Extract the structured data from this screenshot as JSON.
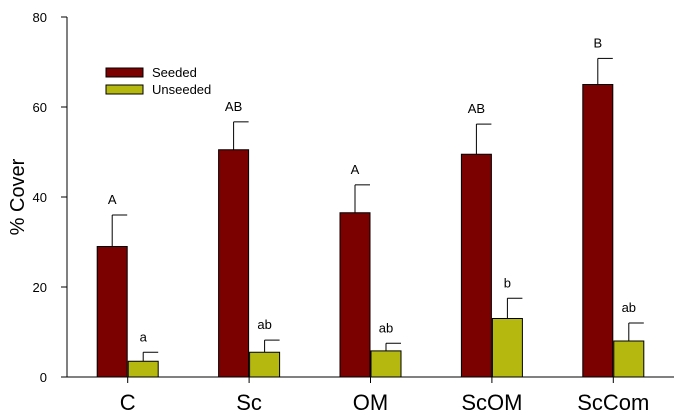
{
  "chart_data": {
    "type": "bar",
    "title": "",
    "xlabel": "",
    "ylabel": "% Cover",
    "ylim": [
      0,
      80
    ],
    "yticks": [
      0,
      20,
      40,
      60,
      80
    ],
    "grid": false,
    "legend_position": "top-left",
    "categories": [
      "C",
      "Sc",
      "OM",
      "ScOM",
      "ScCom"
    ],
    "series": [
      {
        "name": "Seeded",
        "color": "#7b0000",
        "values": [
          29,
          50.5,
          36.5,
          49.5,
          65
        ],
        "errors": [
          7,
          6.2,
          6.2,
          6.7,
          5.8
        ],
        "labels": [
          "A",
          "AB",
          "A",
          "AB",
          "B"
        ]
      },
      {
        "name": "Unseeded",
        "color": "#b5b80e",
        "values": [
          3.5,
          5.5,
          5.8,
          13,
          8
        ],
        "errors": [
          2,
          2.7,
          1.7,
          4.5,
          4
        ],
        "labels": [
          "a",
          "ab",
          "ab",
          "b",
          "ab"
        ]
      }
    ]
  }
}
